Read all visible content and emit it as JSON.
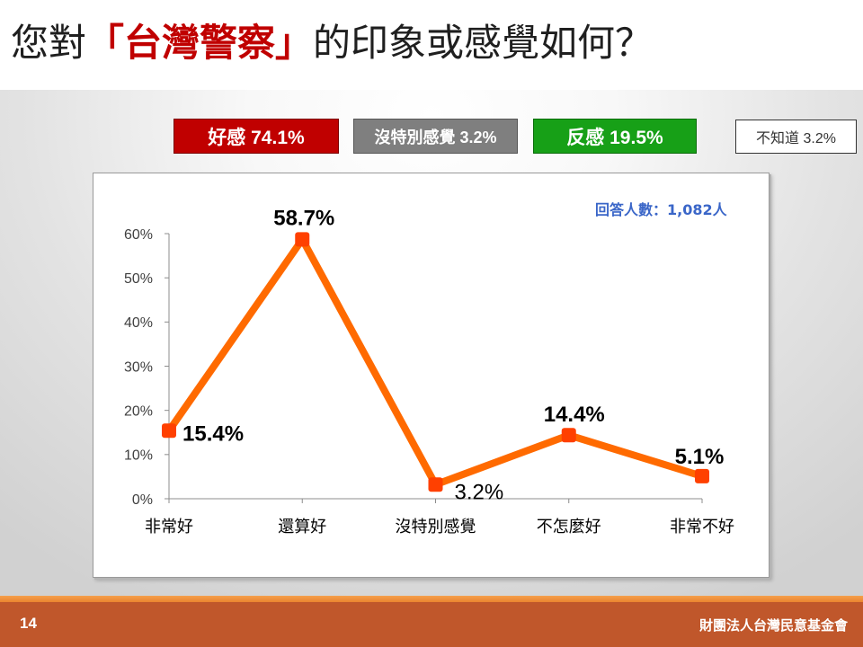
{
  "slide": {
    "title_prefix": "您對",
    "title_highlight": "「台灣警察」",
    "title_suffix": "的印象或感覺如何？",
    "page_number": "14",
    "organization": "財團法人台灣民意基金會"
  },
  "summary": {
    "favorable": "好感 74.1%",
    "neutral": "沒特別感覺 3.2%",
    "unfavorable": "反感 19.5%",
    "unknown": "不知道 3.2%"
  },
  "colors": {
    "title_highlight": "#c00000",
    "favorable": "#c00000",
    "neutral": "#7f7f7f",
    "unfavorable": "#17a017",
    "respondent_text": "#3a66c8",
    "line": "#ff6a00",
    "marker": "#ff4000",
    "footer": "#c0572b"
  },
  "chart_data": {
    "type": "line",
    "categories": [
      "非常好",
      "還算好",
      "沒特別感覺",
      "不怎麼好",
      "非常不好"
    ],
    "series": [
      {
        "values": [
          15.4,
          58.7,
          3.2,
          14.4,
          5.1
        ]
      }
    ],
    "data_labels": [
      "15.4%",
      "58.7%",
      "3.2%",
      "14.4%",
      "5.1%"
    ],
    "y_ticks": [
      0,
      10,
      20,
      30,
      40,
      50,
      60
    ],
    "y_tick_labels": [
      "0%",
      "10%",
      "20%",
      "30%",
      "40%",
      "50%",
      "60%"
    ],
    "ylim": [
      0,
      60
    ],
    "annotation": "回答人數：1,082人",
    "grid": false
  }
}
